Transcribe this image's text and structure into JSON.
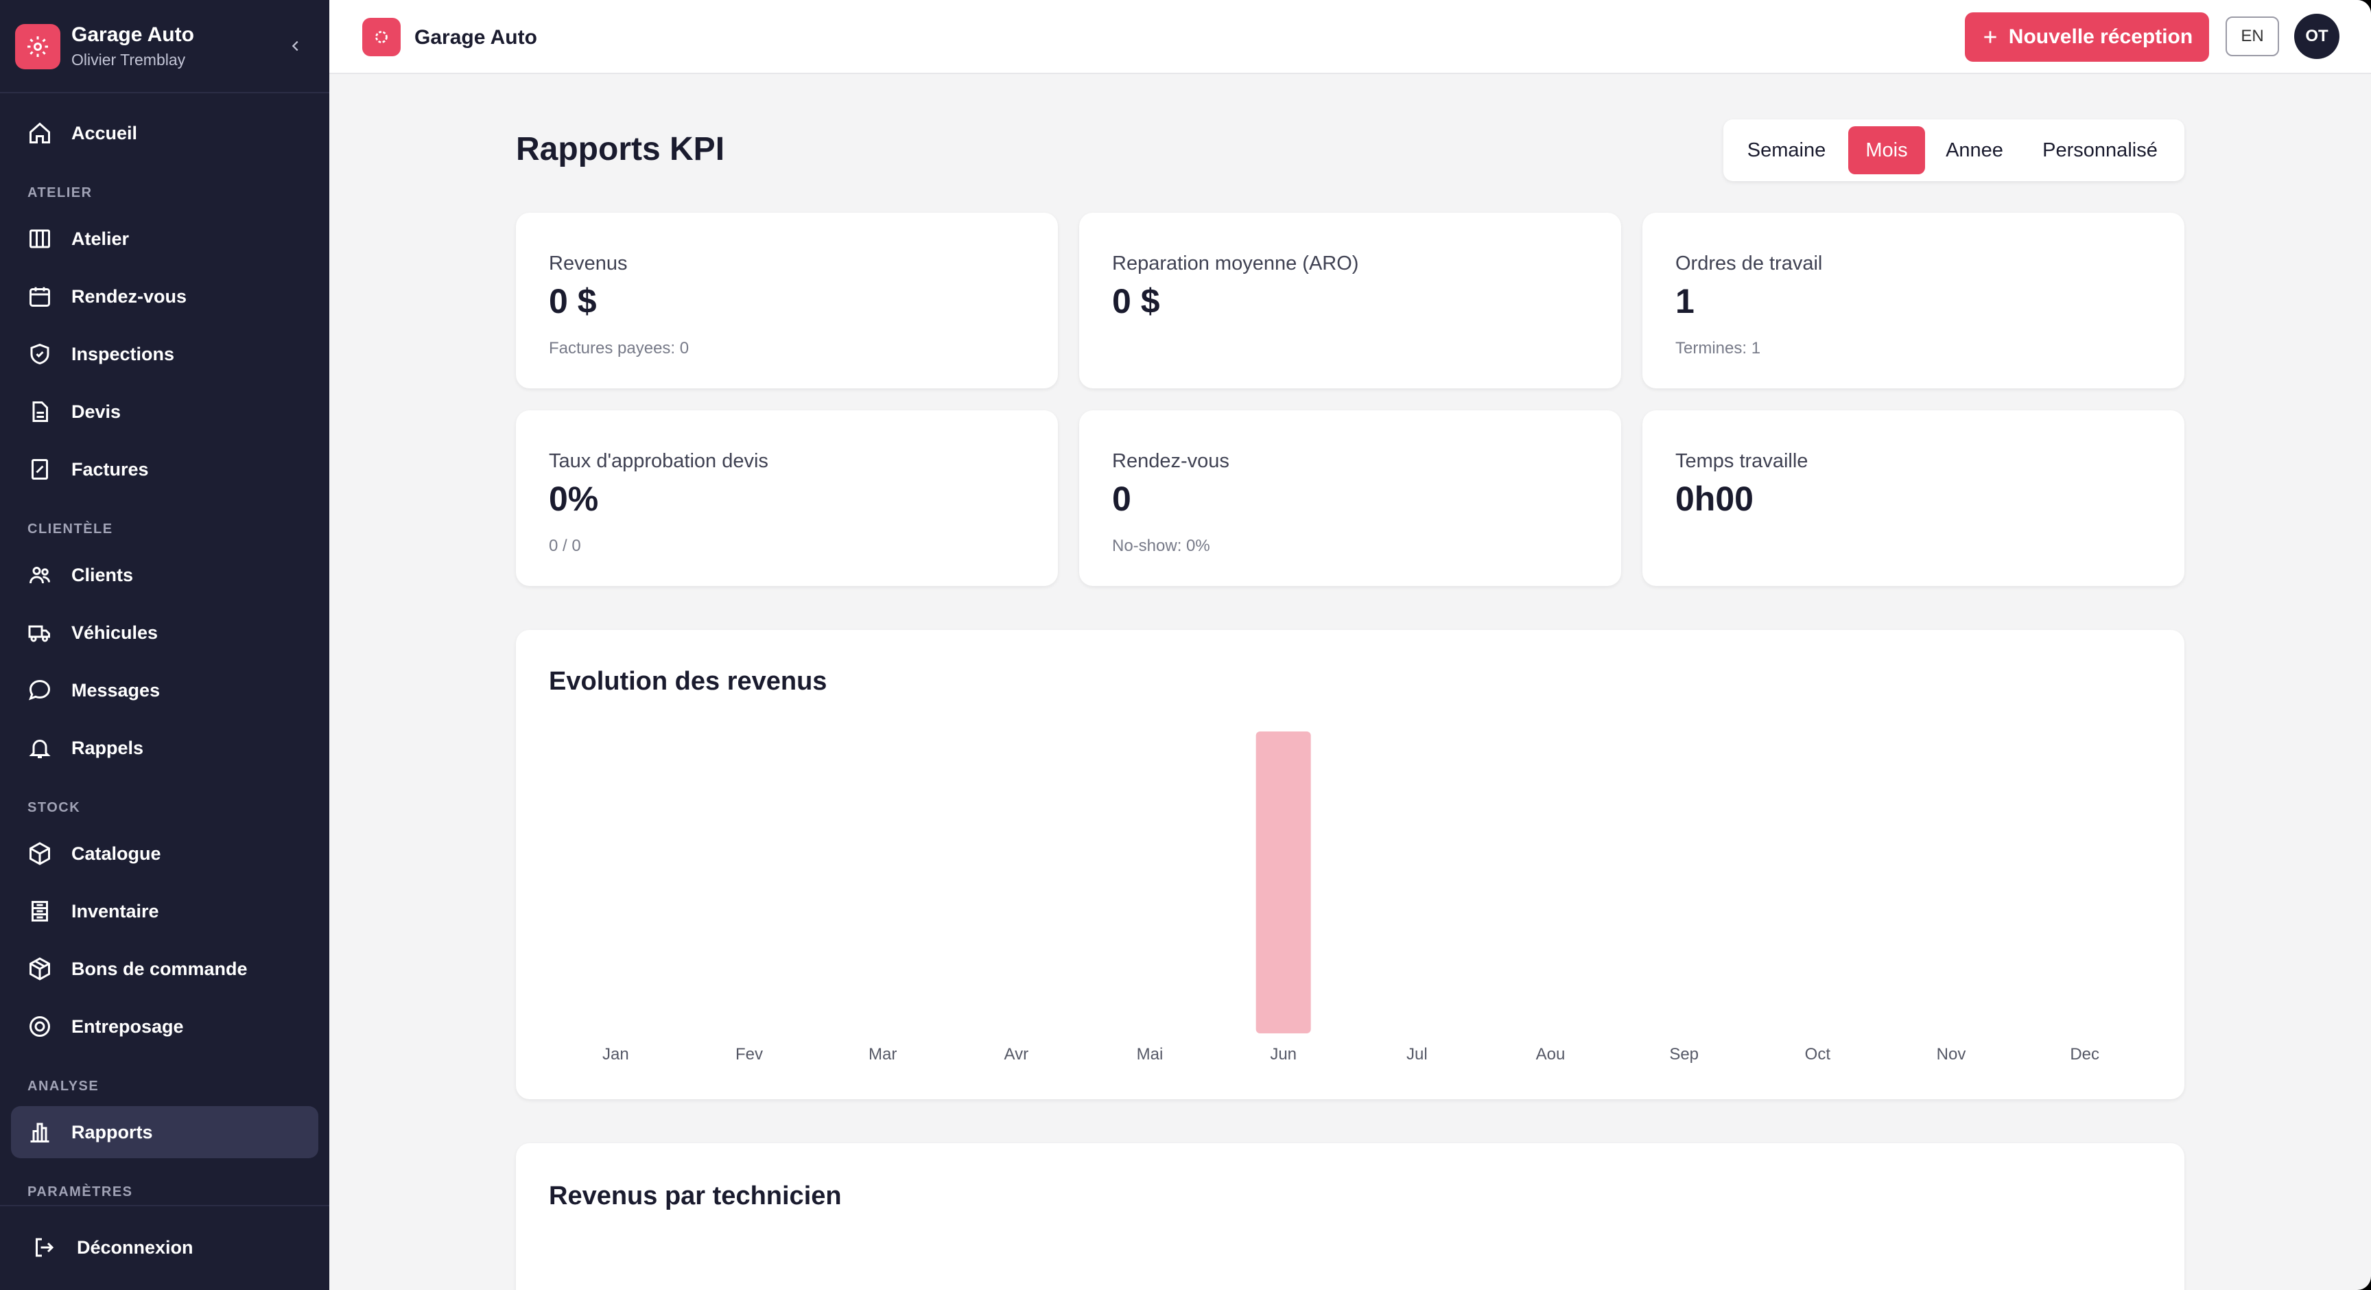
{
  "sidebar": {
    "brand": {
      "name": "Garage Auto",
      "user": "Olivier Tremblay"
    },
    "items": [
      {
        "label": "Accueil",
        "icon": "home-icon"
      },
      {
        "label": "Atelier",
        "icon": "columns-icon"
      },
      {
        "label": "Rendez-vous",
        "icon": "calendar-icon"
      },
      {
        "label": "Inspections",
        "icon": "shield-icon"
      },
      {
        "label": "Devis",
        "icon": "document-icon"
      },
      {
        "label": "Factures",
        "icon": "receipt-icon"
      },
      {
        "label": "Clients",
        "icon": "users-icon"
      },
      {
        "label": "Véhicules",
        "icon": "truck-icon"
      },
      {
        "label": "Messages",
        "icon": "message-icon"
      },
      {
        "label": "Rappels",
        "icon": "bell-icon"
      },
      {
        "label": "Catalogue",
        "icon": "box-icon"
      },
      {
        "label": "Inventaire",
        "icon": "inventory-icon"
      },
      {
        "label": "Bons de commande",
        "icon": "package-icon"
      },
      {
        "label": "Entreposage",
        "icon": "target-icon"
      },
      {
        "label": "Rapports",
        "icon": "bar-chart-icon"
      }
    ],
    "sections": [
      "ATELIER",
      "CLIENTÈLE",
      "STOCK",
      "ANALYSE",
      "PARAMÈTRES"
    ],
    "logout": "Déconnexion"
  },
  "topbar": {
    "title": "Garage Auto",
    "new_button": "Nouvelle réception",
    "lang": "EN",
    "avatar": "OT"
  },
  "page": {
    "title": "Rapports KPI",
    "periods": [
      "Semaine",
      "Mois",
      "Annee",
      "Personnalisé"
    ],
    "active_period": "Mois"
  },
  "kpis": [
    {
      "label": "Revenus",
      "value": "0 $",
      "sub": "Factures payees: 0"
    },
    {
      "label": "Reparation moyenne (ARO)",
      "value": "0 $",
      "sub": ""
    },
    {
      "label": "Ordres de travail",
      "value": "1",
      "sub": "Termines: 1"
    },
    {
      "label": "Taux d'approbation devis",
      "value": "0%",
      "sub": "0 / 0"
    },
    {
      "label": "Rendez-vous",
      "value": "0",
      "sub": "No-show: 0%"
    },
    {
      "label": "Temps travaille",
      "value": "0h00",
      "sub": ""
    }
  ],
  "chart_data": {
    "type": "bar",
    "title": "Evolution des revenus",
    "categories": [
      "Jan",
      "Fev",
      "Mar",
      "Avr",
      "Mai",
      "Jun",
      "Jul",
      "Aou",
      "Sep",
      "Oct",
      "Nov",
      "Dec"
    ],
    "values": [
      0,
      0,
      0,
      0,
      0,
      1,
      0,
      0,
      0,
      0,
      0,
      0
    ],
    "ylim": [
      0,
      1
    ],
    "grid": false,
    "bar_color": "#f5b6c0"
  },
  "tech_section": {
    "title": "Revenus par technicien"
  },
  "colors": {
    "accent": "#e8445f",
    "sidebar": "#1c1e32"
  }
}
